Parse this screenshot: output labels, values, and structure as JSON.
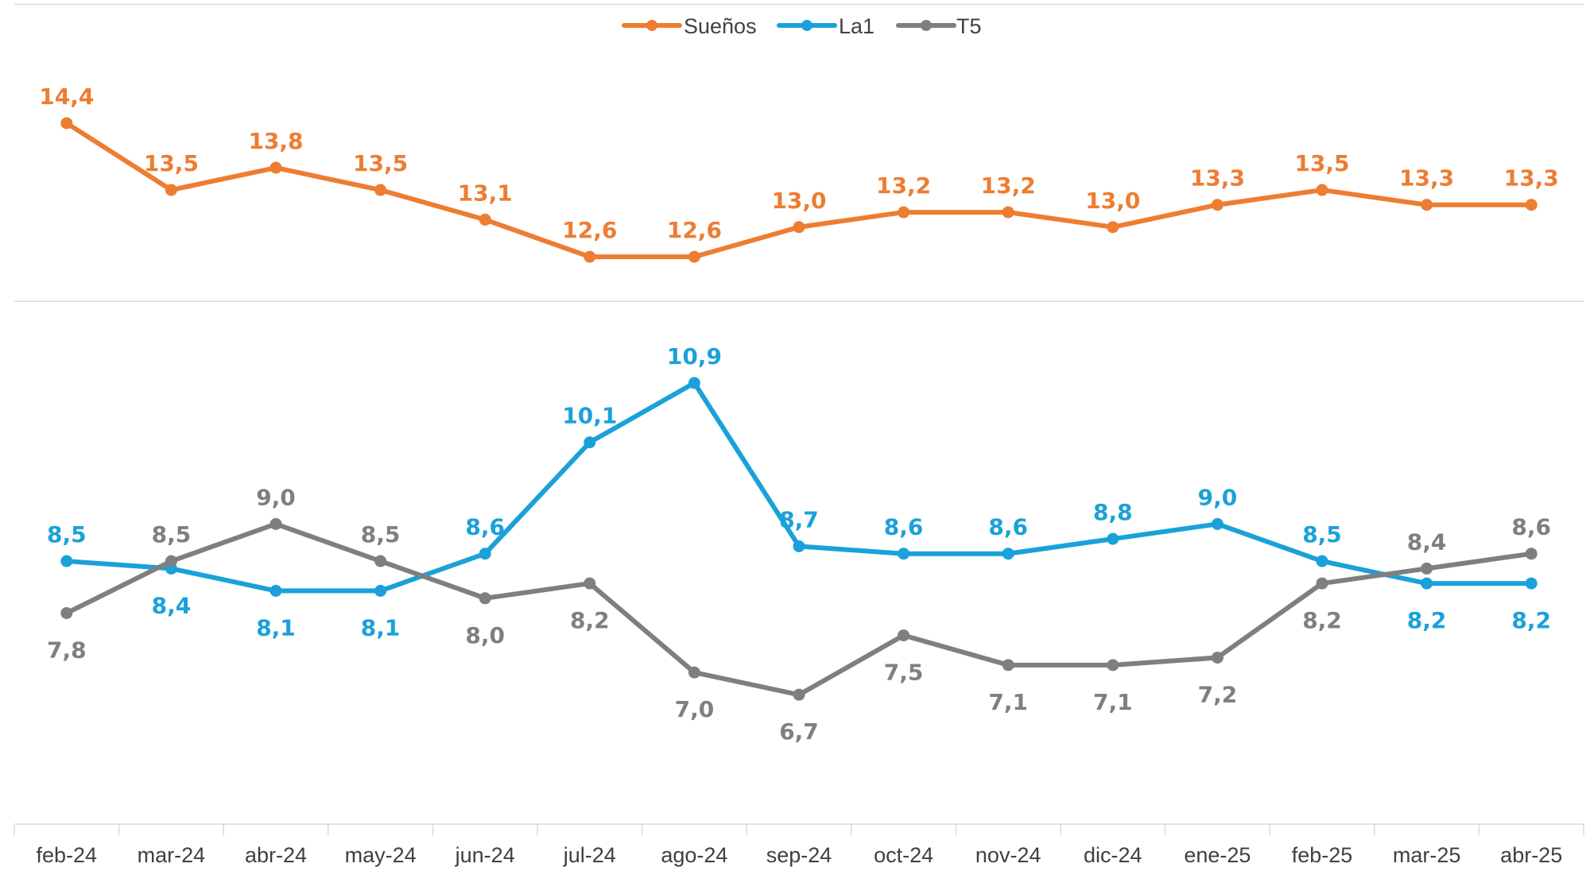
{
  "chart_data": {
    "type": "line",
    "title": "",
    "xlabel": "",
    "ylabel": "",
    "grid": true,
    "legend_position": "top-center",
    "categories": [
      "feb-24",
      "mar-24",
      "abr-24",
      "may-24",
      "jun-24",
      "jul-24",
      "ago-24",
      "sep-24",
      "oct-24",
      "nov-24",
      "dic-24",
      "ene-25",
      "feb-25",
      "mar-25",
      "abr-25"
    ],
    "ylim": [
      4,
      16
    ],
    "series": [
      {
        "name": "Sueños",
        "color": "#ED7D31",
        "label_position": "above",
        "values": [
          14.4,
          13.5,
          13.8,
          13.5,
          13.1,
          12.6,
          12.6,
          13.0,
          13.2,
          13.2,
          13.0,
          13.3,
          13.5,
          13.3,
          13.3
        ],
        "labels": [
          "14,4",
          "13,5",
          "13,8",
          "13,5",
          "13,1",
          "12,6",
          "12,6",
          "13,0",
          "13,2",
          "13,2",
          "13,0",
          "13,3",
          "13,5",
          "13,3",
          "13,3"
        ]
      },
      {
        "name": "La1",
        "color": "#1BA1D9",
        "label_position": "mixed",
        "values": [
          8.5,
          8.4,
          8.1,
          8.1,
          8.6,
          10.1,
          10.9,
          8.7,
          8.6,
          8.6,
          8.8,
          9.0,
          8.5,
          8.2,
          8.2
        ],
        "labels": [
          "8,5",
          "8,4",
          "8,1",
          "8,1",
          "8,6",
          "10,1",
          "10,9",
          "8,7",
          "8,6",
          "8,6",
          "8,8",
          "9,0",
          "8,5",
          "8,2",
          "8,2"
        ],
        "label_sides": [
          "above",
          "below",
          "below",
          "below",
          "above",
          "above",
          "above",
          "above",
          "above",
          "above",
          "above",
          "above",
          "above",
          "below",
          "below"
        ]
      },
      {
        "name": "T5",
        "color": "#7F7F7F",
        "label_position": "mixed",
        "values": [
          7.8,
          8.5,
          9.0,
          8.5,
          8.0,
          8.2,
          7.0,
          6.7,
          7.5,
          7.1,
          7.1,
          7.2,
          8.2,
          8.4,
          8.6
        ],
        "labels": [
          "7,8",
          "8,5",
          "9,0",
          "8,5",
          "8,0",
          "8,2",
          "7,0",
          "6,7",
          "7,5",
          "7,1",
          "7,1",
          "7,2",
          "8,2",
          "8,4",
          "8,6"
        ],
        "label_sides": [
          "below",
          "above",
          "above",
          "above",
          "below",
          "below",
          "below",
          "below",
          "below",
          "below",
          "below",
          "below",
          "below",
          "above",
          "above"
        ]
      }
    ]
  }
}
